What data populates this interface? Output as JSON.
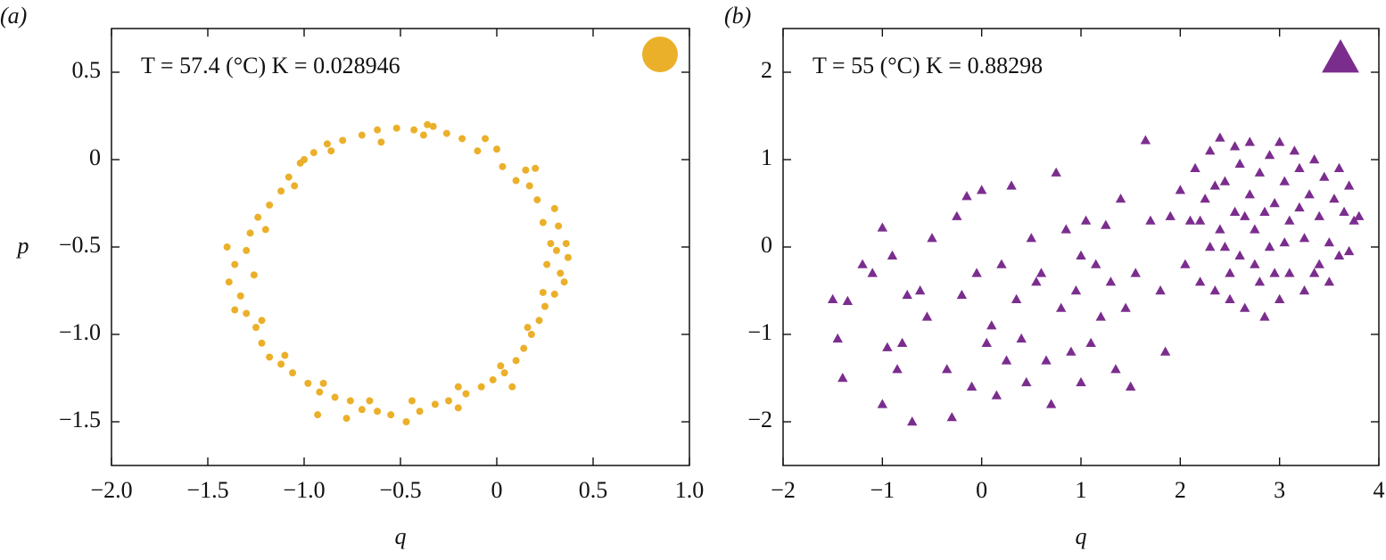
{
  "chart_data": [
    {
      "type": "scatter",
      "panel_label": "(a)",
      "annotation": "T = 57.4 (°C) K = 0.028946",
      "xlabel": "q",
      "ylabel": "p",
      "xlim": [
        -2.0,
        1.0
      ],
      "ylim": [
        -1.75,
        0.75
      ],
      "xticks": [
        {
          "value": -2.0,
          "label": "−2.0"
        },
        {
          "value": -1.5,
          "label": "−1.5"
        },
        {
          "value": -1.0,
          "label": "−1.0"
        },
        {
          "value": -0.5,
          "label": "−0.5"
        },
        0,
        0.5,
        {
          "value": 1.0,
          "label": "1.0"
        }
      ],
      "yticks": [
        0.5,
        0,
        {
          "value": -0.5,
          "label": "−0.5"
        },
        {
          "value": -1.0,
          "label": "−1.0"
        },
        {
          "value": -1.5,
          "label": "−1.5"
        }
      ],
      "series": [
        {
          "color": "#ebb02a",
          "marker": "circle",
          "x": [
            0.33,
            0.37,
            0.28,
            0.32,
            0.3,
            0.21,
            0.17,
            0.15,
            0.03,
            0.0,
            -0.06,
            -0.18,
            -0.26,
            -0.33,
            -0.43,
            -0.52,
            -0.62,
            -0.7,
            -0.8,
            -0.88,
            -0.95,
            -1.02,
            -1.08,
            -1.12,
            -1.18,
            -1.24,
            -1.28,
            -1.3,
            -1.36,
            -1.39,
            -1.33,
            -1.3,
            -1.25,
            -1.22,
            -1.18,
            -1.12,
            -1.06,
            -0.98,
            -0.92,
            -0.84,
            -0.76,
            -0.7,
            -0.62,
            -0.55,
            -0.47,
            -0.4,
            -0.32,
            -0.25,
            -0.16,
            -0.08,
            -0.02,
            0.04,
            0.1,
            0.14,
            0.18,
            0.22,
            0.25,
            0.3,
            0.35,
            0.26,
            0.24,
            0.1,
            -0.1,
            -0.38,
            -0.6,
            -0.86,
            -1.05,
            -1.2,
            -1.26,
            -1.22,
            -1.1,
            -0.9,
            -0.66,
            -0.44,
            -0.2,
            0.02,
            0.16,
            0.24,
            0.31,
            -0.93,
            -0.78,
            -0.2,
            0.08,
            -1.4,
            -1.36,
            -1.0,
            -0.36,
            0.2,
            0.36
          ],
          "y": [
            -0.65,
            -0.56,
            -0.48,
            -0.38,
            -0.28,
            -0.23,
            -0.15,
            -0.06,
            -0.04,
            0.06,
            0.12,
            0.12,
            0.15,
            0.19,
            0.17,
            0.18,
            0.17,
            0.14,
            0.11,
            0.09,
            0.04,
            -0.02,
            -0.1,
            -0.18,
            -0.26,
            -0.33,
            -0.42,
            -0.52,
            -0.6,
            -0.7,
            -0.78,
            -0.88,
            -0.96,
            -1.05,
            -1.13,
            -1.17,
            -1.22,
            -1.28,
            -1.33,
            -1.36,
            -1.38,
            -1.43,
            -1.44,
            -1.46,
            -1.5,
            -1.44,
            -1.4,
            -1.38,
            -1.34,
            -1.3,
            -1.26,
            -1.22,
            -1.15,
            -1.08,
            -1.0,
            -0.92,
            -0.84,
            -0.77,
            -0.7,
            -0.6,
            -0.36,
            -0.12,
            0.05,
            0.14,
            0.1,
            0.05,
            -0.15,
            -0.4,
            -0.66,
            -0.92,
            -1.12,
            -1.28,
            -1.38,
            -1.38,
            -1.3,
            -1.18,
            -0.96,
            -0.76,
            -0.52,
            -1.46,
            -1.48,
            -1.42,
            -1.3,
            -0.5,
            -0.86,
            0.0,
            0.2,
            -0.05,
            -0.48
          ]
        }
      ]
    },
    {
      "type": "scatter",
      "panel_label": "(b)",
      "annotation": "T = 55 (°C) K = 0.88298",
      "xlabel": "q",
      "xlim": [
        -2,
        4
      ],
      "ylim": [
        -2.5,
        2.5
      ],
      "xticks": [
        {
          "value": -2,
          "label": "−2"
        },
        {
          "value": -1,
          "label": "−1"
        },
        0,
        1,
        2,
        3,
        4
      ],
      "yticks": [
        2,
        1,
        0,
        {
          "value": -1,
          "label": "−1"
        },
        {
          "value": -2,
          "label": "−2"
        }
      ],
      "series": [
        {
          "color": "#7b2d8e",
          "marker": "triangle",
          "x": [
            -1.5,
            -1.45,
            -1.4,
            -1.35,
            -1.2,
            -1.1,
            -1.0,
            -1.0,
            -0.95,
            -0.9,
            -0.85,
            -0.75,
            -0.7,
            -0.62,
            -0.55,
            -0.5,
            -0.35,
            -0.3,
            -0.25,
            -0.2,
            -0.15,
            -0.1,
            -0.05,
            0.0,
            0.05,
            0.1,
            0.15,
            0.2,
            0.3,
            0.35,
            0.4,
            0.45,
            0.5,
            0.55,
            0.6,
            0.65,
            0.7,
            0.75,
            0.8,
            0.85,
            0.9,
            0.95,
            1.0,
            1.05,
            1.1,
            1.15,
            1.2,
            1.25,
            1.3,
            1.35,
            1.4,
            1.45,
            1.5,
            1.55,
            1.65,
            1.7,
            1.8,
            1.85,
            1.9,
            -0.8,
            0.25,
            1.0,
            2.0,
            2.05,
            2.1,
            2.15,
            2.2,
            2.25,
            2.3,
            2.3,
            2.35,
            2.4,
            2.4,
            2.45,
            2.5,
            2.5,
            2.55,
            2.55,
            2.6,
            2.6,
            2.65,
            2.7,
            2.7,
            2.75,
            2.8,
            2.8,
            2.85,
            2.9,
            2.9,
            2.95,
            3.0,
            3.0,
            3.05,
            3.1,
            3.1,
            3.15,
            3.2,
            3.25,
            3.25,
            3.3,
            3.35,
            3.4,
            3.4,
            3.45,
            3.5,
            3.5,
            3.55,
            3.6,
            3.6,
            3.65,
            3.7,
            3.7,
            3.75,
            3.8,
            2.2,
            2.45,
            2.65,
            2.85,
            3.05,
            2.75,
            3.2,
            2.35,
            2.95,
            3.35
          ],
          "y": [
            -0.6,
            -1.05,
            -1.5,
            -0.62,
            -0.2,
            -0.3,
            -1.8,
            0.22,
            -1.15,
            -0.1,
            -1.4,
            -0.55,
            -2.0,
            -0.5,
            -0.8,
            0.1,
            -1.4,
            -1.95,
            0.35,
            -0.55,
            0.58,
            -1.6,
            -0.3,
            0.65,
            -1.1,
            -0.9,
            -1.7,
            -0.2,
            0.7,
            -0.6,
            -1.05,
            -1.55,
            0.1,
            -0.4,
            -0.3,
            -1.3,
            -1.8,
            0.85,
            -0.7,
            0.2,
            -1.2,
            -0.5,
            -0.1,
            0.3,
            -1.1,
            -0.2,
            -0.8,
            0.25,
            -0.4,
            -1.4,
            0.55,
            -0.7,
            -1.6,
            -0.3,
            1.22,
            0.3,
            -0.5,
            -1.2,
            0.35,
            -1.1,
            -1.3,
            -1.55,
            0.65,
            -0.2,
            0.3,
            0.9,
            -0.4,
            0.55,
            1.1,
            0.0,
            -0.5,
            1.25,
            0.2,
            0.75,
            -0.3,
            -0.6,
            1.15,
            0.4,
            0.95,
            -0.1,
            -0.7,
            0.6,
            1.2,
            0.2,
            -0.4,
            0.85,
            -0.8,
            1.05,
            0.0,
            0.5,
            1.2,
            -0.6,
            0.75,
            0.3,
            -0.3,
            1.1,
            0.9,
            -0.5,
            0.1,
            0.6,
            1.0,
            -0.2,
            0.35,
            0.8,
            -0.4,
            0.05,
            0.55,
            0.9,
            -0.1,
            0.4,
            0.7,
            -0.05,
            0.3,
            0.35,
            0.3,
            0.0,
            0.35,
            0.4,
            0.05,
            -0.2,
            0.45,
            0.7,
            -0.3,
            -0.3
          ]
        }
      ]
    }
  ]
}
